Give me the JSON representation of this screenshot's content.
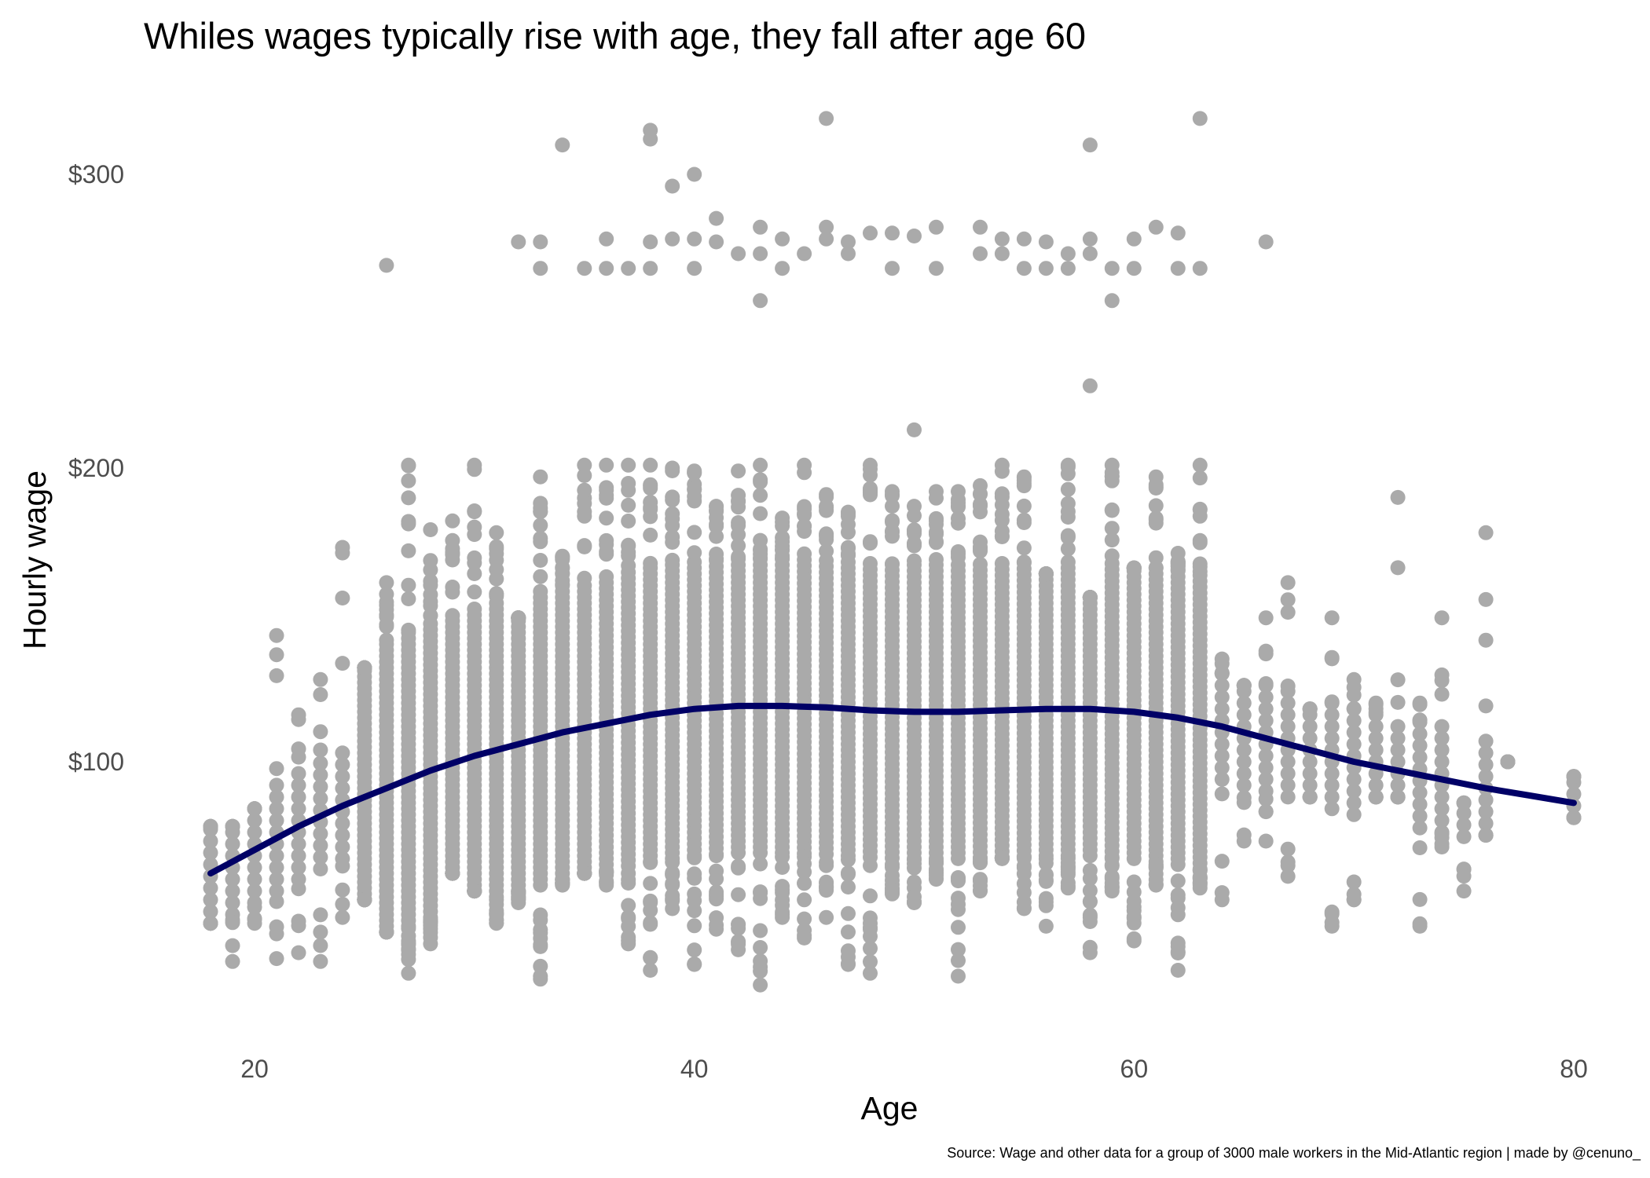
{
  "chart_data": {
    "type": "scatter",
    "title": "Whiles wages typically rise with age, they fall after age 60",
    "xlabel": "Age",
    "ylabel": "Hourly wage",
    "caption": "Source: Wage and other data for a group of 3000 male workers in the Mid-Atlantic region | made by @cenuno_",
    "xlim": [
      15,
      81
    ],
    "ylim": [
      15,
      330
    ],
    "x_ticks": [
      20,
      40,
      60,
      80
    ],
    "y_ticks": [
      100,
      200,
      300
    ],
    "y_tick_labels": [
      "$100",
      "$200",
      "$300"
    ],
    "grid": false,
    "legend": "none",
    "point_color": "#aaaaaa",
    "trend_color": "#000066",
    "trend_line": {
      "x": [
        18,
        20,
        22,
        24,
        26,
        28,
        30,
        32,
        34,
        36,
        38,
        40,
        42,
        44,
        46,
        48,
        50,
        52,
        54,
        56,
        58,
        60,
        62,
        64,
        66,
        68,
        70,
        72,
        74,
        76,
        78,
        80
      ],
      "y": [
        62,
        70,
        78,
        85,
        91,
        97,
        102,
        106,
        110,
        113,
        116,
        118,
        119,
        119,
        118.5,
        117.5,
        117,
        117,
        117.5,
        118,
        118,
        117,
        115,
        112,
        108,
        104,
        100,
        97,
        94,
        91,
        88.5,
        86
      ]
    },
    "outliers": [
      {
        "x": 26,
        "y": 269
      },
      {
        "x": 32,
        "y": 277
      },
      {
        "x": 33,
        "y": 277
      },
      {
        "x": 33,
        "y": 268
      },
      {
        "x": 34,
        "y": 310
      },
      {
        "x": 35,
        "y": 268
      },
      {
        "x": 36,
        "y": 278
      },
      {
        "x": 36,
        "y": 268
      },
      {
        "x": 37,
        "y": 268
      },
      {
        "x": 38,
        "y": 315
      },
      {
        "x": 38,
        "y": 312
      },
      {
        "x": 38,
        "y": 277
      },
      {
        "x": 38,
        "y": 268
      },
      {
        "x": 39,
        "y": 296
      },
      {
        "x": 39,
        "y": 278
      },
      {
        "x": 40,
        "y": 300
      },
      {
        "x": 40,
        "y": 278
      },
      {
        "x": 40,
        "y": 268
      },
      {
        "x": 41,
        "y": 285
      },
      {
        "x": 41,
        "y": 277
      },
      {
        "x": 42,
        "y": 273
      },
      {
        "x": 43,
        "y": 282
      },
      {
        "x": 43,
        "y": 273
      },
      {
        "x": 43,
        "y": 257
      },
      {
        "x": 44,
        "y": 278
      },
      {
        "x": 44,
        "y": 268
      },
      {
        "x": 45,
        "y": 273
      },
      {
        "x": 46,
        "y": 319
      },
      {
        "x": 46,
        "y": 282
      },
      {
        "x": 46,
        "y": 278
      },
      {
        "x": 47,
        "y": 277
      },
      {
        "x": 47,
        "y": 273
      },
      {
        "x": 48,
        "y": 280
      },
      {
        "x": 49,
        "y": 280
      },
      {
        "x": 49,
        "y": 268
      },
      {
        "x": 50,
        "y": 279
      },
      {
        "x": 51,
        "y": 282
      },
      {
        "x": 51,
        "y": 268
      },
      {
        "x": 53,
        "y": 282
      },
      {
        "x": 53,
        "y": 273
      },
      {
        "x": 54,
        "y": 278
      },
      {
        "x": 54,
        "y": 273
      },
      {
        "x": 55,
        "y": 278
      },
      {
        "x": 55,
        "y": 268
      },
      {
        "x": 56,
        "y": 277
      },
      {
        "x": 56,
        "y": 268
      },
      {
        "x": 57,
        "y": 273
      },
      {
        "x": 57,
        "y": 268
      },
      {
        "x": 58,
        "y": 310
      },
      {
        "x": 58,
        "y": 278
      },
      {
        "x": 58,
        "y": 273
      },
      {
        "x": 59,
        "y": 268
      },
      {
        "x": 59,
        "y": 257
      },
      {
        "x": 60,
        "y": 278
      },
      {
        "x": 60,
        "y": 268
      },
      {
        "x": 61,
        "y": 282
      },
      {
        "x": 62,
        "y": 280
      },
      {
        "x": 62,
        "y": 268
      },
      {
        "x": 63,
        "y": 319
      },
      {
        "x": 63,
        "y": 268
      },
      {
        "x": 66,
        "y": 277
      },
      {
        "x": 58,
        "y": 228
      },
      {
        "x": 50,
        "y": 213
      }
    ],
    "main_band": [
      {
        "x": 18,
        "lo": 45,
        "hi": 78
      },
      {
        "x": 19,
        "lo": 32,
        "hi": 78
      },
      {
        "x": 20,
        "lo": 45,
        "hi": 84
      },
      {
        "x": 21,
        "lo": 33,
        "hi": 143
      },
      {
        "x": 22,
        "lo": 35,
        "hi": 116
      },
      {
        "x": 23,
        "lo": 32,
        "hi": 128
      },
      {
        "x": 24,
        "lo": 47,
        "hi": 173
      },
      {
        "x": 25,
        "lo": 53,
        "hi": 132
      },
      {
        "x": 26,
        "lo": 42,
        "hi": 161
      },
      {
        "x": 27,
        "lo": 28,
        "hi": 201
      },
      {
        "x": 28,
        "lo": 38,
        "hi": 179
      },
      {
        "x": 29,
        "lo": 62,
        "hi": 182
      },
      {
        "x": 30,
        "lo": 56,
        "hi": 201
      },
      {
        "x": 31,
        "lo": 45,
        "hi": 178
      },
      {
        "x": 32,
        "lo": 52,
        "hi": 149
      },
      {
        "x": 33,
        "lo": 26,
        "hi": 197
      },
      {
        "x": 34,
        "lo": 58,
        "hi": 170
      },
      {
        "x": 35,
        "lo": 62,
        "hi": 201
      },
      {
        "x": 36,
        "lo": 58,
        "hi": 201
      },
      {
        "x": 37,
        "lo": 38,
        "hi": 201
      },
      {
        "x": 38,
        "lo": 29,
        "hi": 201
      },
      {
        "x": 39,
        "lo": 50,
        "hi": 200
      },
      {
        "x": 40,
        "lo": 31,
        "hi": 199
      },
      {
        "x": 41,
        "lo": 43,
        "hi": 187
      },
      {
        "x": 42,
        "lo": 36,
        "hi": 199
      },
      {
        "x": 43,
        "lo": 24,
        "hi": 201
      },
      {
        "x": 44,
        "lo": 47,
        "hi": 183
      },
      {
        "x": 45,
        "lo": 40,
        "hi": 201
      },
      {
        "x": 46,
        "lo": 47,
        "hi": 191
      },
      {
        "x": 47,
        "lo": 31,
        "hi": 185
      },
      {
        "x": 48,
        "lo": 28,
        "hi": 201
      },
      {
        "x": 49,
        "lo": 55,
        "hi": 192
      },
      {
        "x": 50,
        "lo": 52,
        "hi": 187
      },
      {
        "x": 51,
        "lo": 60,
        "hi": 192
      },
      {
        "x": 52,
        "lo": 27,
        "hi": 192
      },
      {
        "x": 53,
        "lo": 56,
        "hi": 194
      },
      {
        "x": 54,
        "lo": 67,
        "hi": 201
      },
      {
        "x": 55,
        "lo": 50,
        "hi": 197
      },
      {
        "x": 56,
        "lo": 44,
        "hi": 164
      },
      {
        "x": 57,
        "lo": 57,
        "hi": 201
      },
      {
        "x": 58,
        "lo": 35,
        "hi": 156
      },
      {
        "x": 59,
        "lo": 56,
        "hi": 201
      },
      {
        "x": 60,
        "lo": 39,
        "hi": 166
      },
      {
        "x": 61,
        "lo": 58,
        "hi": 197
      },
      {
        "x": 62,
        "lo": 29,
        "hi": 171
      },
      {
        "x": 63,
        "lo": 57,
        "hi": 201
      },
      {
        "x": 64,
        "lo": 53,
        "hi": 135
      },
      {
        "x": 65,
        "lo": 73,
        "hi": 126
      },
      {
        "x": 66,
        "lo": 73,
        "hi": 149
      },
      {
        "x": 67,
        "lo": 61,
        "hi": 161
      },
      {
        "x": 68,
        "lo": 88,
        "hi": 118
      },
      {
        "x": 69,
        "lo": 44,
        "hi": 149
      },
      {
        "x": 70,
        "lo": 53,
        "hi": 128
      },
      {
        "x": 71,
        "lo": 88,
        "hi": 120
      },
      {
        "x": 72,
        "lo": 88,
        "hi": 190
      },
      {
        "x": 73,
        "lo": 44,
        "hi": 120
      },
      {
        "x": 74,
        "lo": 71,
        "hi": 149
      },
      {
        "x": 75,
        "lo": 56,
        "hi": 86
      },
      {
        "x": 76,
        "lo": 75,
        "hi": 178
      },
      {
        "x": 77,
        "lo": 100,
        "hi": 100
      },
      {
        "x": 80,
        "lo": 81,
        "hi": 95
      }
    ]
  }
}
